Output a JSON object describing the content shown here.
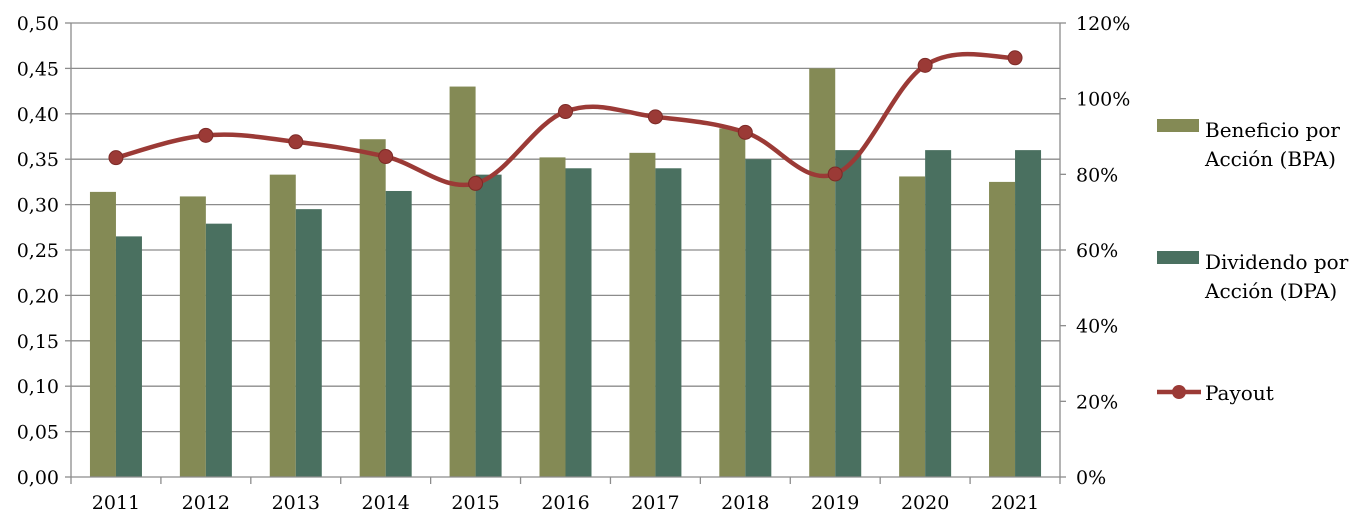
{
  "chart_data": {
    "type": "bar",
    "categories": [
      "2011",
      "2012",
      "2013",
      "2014",
      "2015",
      "2016",
      "2017",
      "2018",
      "2019",
      "2020",
      "2021"
    ],
    "series": [
      {
        "name": "Beneficio por Acción (BPA)",
        "type": "bar",
        "axis": "left",
        "color": "#848a55",
        "values": [
          0.314,
          0.309,
          0.333,
          0.372,
          0.43,
          0.352,
          0.357,
          0.384,
          0.45,
          0.331,
          0.325
        ]
      },
      {
        "name": "Dividendo por Acción (DPA)",
        "type": "bar",
        "axis": "left",
        "color": "#4a7060",
        "values": [
          0.265,
          0.279,
          0.295,
          0.315,
          0.333,
          0.34,
          0.34,
          0.35,
          0.36,
          0.36,
          0.36
        ]
      },
      {
        "name": "Payout",
        "type": "line",
        "smooth": true,
        "axis": "right",
        "color": "#9b3a36",
        "values": [
          0.844,
          0.903,
          0.886,
          0.847,
          0.776,
          0.966,
          0.952,
          0.911,
          0.801,
          1.088,
          1.108
        ]
      }
    ],
    "y_left": {
      "ylim": [
        0,
        0.5
      ],
      "ticks": [
        "0,00",
        "0,05",
        "0,10",
        "0,15",
        "0,20",
        "0,25",
        "0,30",
        "0,35",
        "0,40",
        "0,45",
        "0,50"
      ]
    },
    "y_right": {
      "ylim": [
        0,
        1.2
      ],
      "ticks": [
        "0%",
        "20%",
        "40%",
        "60%",
        "80%",
        "100%",
        "120%"
      ]
    },
    "grid": true,
    "legend_position": "right",
    "legend_lines": [
      [
        "Beneficio por",
        "Acción (BPA)"
      ],
      [
        "Dividendo por",
        "Acción (DPA)"
      ],
      [
        "Payout"
      ]
    ]
  }
}
